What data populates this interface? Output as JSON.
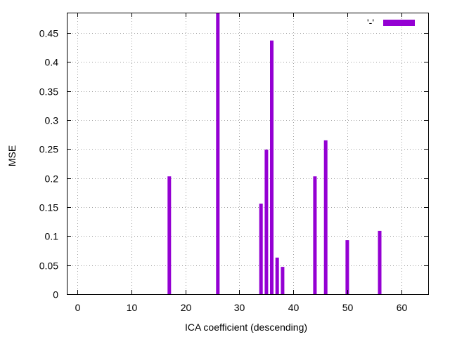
{
  "chart_data": {
    "type": "bar",
    "title": "",
    "xlabel": "ICA coefficient (descending)",
    "ylabel": "MSE",
    "xlim": [
      -2,
      65
    ],
    "ylim": [
      0,
      0.485
    ],
    "xticks": [
      0,
      10,
      20,
      30,
      40,
      50,
      60
    ],
    "yticks": [
      0,
      0.05,
      0.1,
      0.15,
      0.2,
      0.25,
      0.3,
      0.35,
      0.4,
      0.45
    ],
    "xtick_labels": [
      "0",
      "10",
      "20",
      "30",
      "40",
      "50",
      "60"
    ],
    "ytick_labels": [
      "0",
      "0.05",
      "0.1",
      "0.15",
      "0.2",
      "0.25",
      "0.3",
      "0.35",
      "0.4",
      "0.45"
    ],
    "grid": true,
    "legend": {
      "position": "top-right",
      "entries": [
        "'-'"
      ]
    },
    "series": [
      {
        "name": "'-'",
        "color": "#9400d3",
        "x": [
          17,
          26,
          34,
          35,
          36,
          37,
          38,
          44,
          46,
          50,
          56
        ],
        "values": [
          0.203,
          0.485,
          0.156,
          0.249,
          0.437,
          0.063,
          0.047,
          0.203,
          0.265,
          0.093,
          0.109
        ]
      }
    ]
  }
}
